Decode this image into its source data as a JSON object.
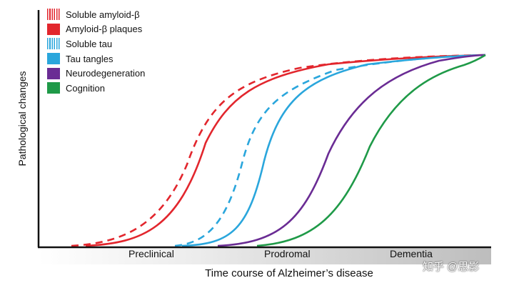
{
  "legend": [
    {
      "label": "Soluble amyloid-β",
      "color": "#e2262d",
      "style": "striped"
    },
    {
      "label": "Amyloid-β plaques",
      "color": "#e2262d",
      "style": "solid"
    },
    {
      "label": "Soluble tau",
      "color": "#2aa6dc",
      "style": "striped"
    },
    {
      "label": "Tau tangles",
      "color": "#2aa6dc",
      "style": "solid"
    },
    {
      "label": "Neurodegeneration",
      "color": "#6a2c94",
      "style": "solid"
    },
    {
      "label": "Cognition",
      "color": "#1f9a48",
      "style": "solid"
    }
  ],
  "axes": {
    "y_label": "Pathological changes",
    "x_title": "Time course of Alzheimer’s disease"
  },
  "phases": [
    "Preclinical",
    "Prodromal",
    "Dementia"
  ],
  "watermark": "知乎 @思影",
  "curves": [
    {
      "name": "soluble-amyloid-curve",
      "color": "#e2262d",
      "dashed": true
    },
    {
      "name": "amyloid-plaques-curve",
      "color": "#e2262d",
      "dashed": false
    },
    {
      "name": "soluble-tau-curve",
      "color": "#2aa6dc",
      "dashed": true
    },
    {
      "name": "tau-tangles-curve",
      "color": "#2aa6dc",
      "dashed": false
    },
    {
      "name": "neurodegeneration-curve",
      "color": "#6a2c94",
      "dashed": false
    },
    {
      "name": "cognition-curve",
      "color": "#1f9a48",
      "dashed": false
    }
  ]
}
